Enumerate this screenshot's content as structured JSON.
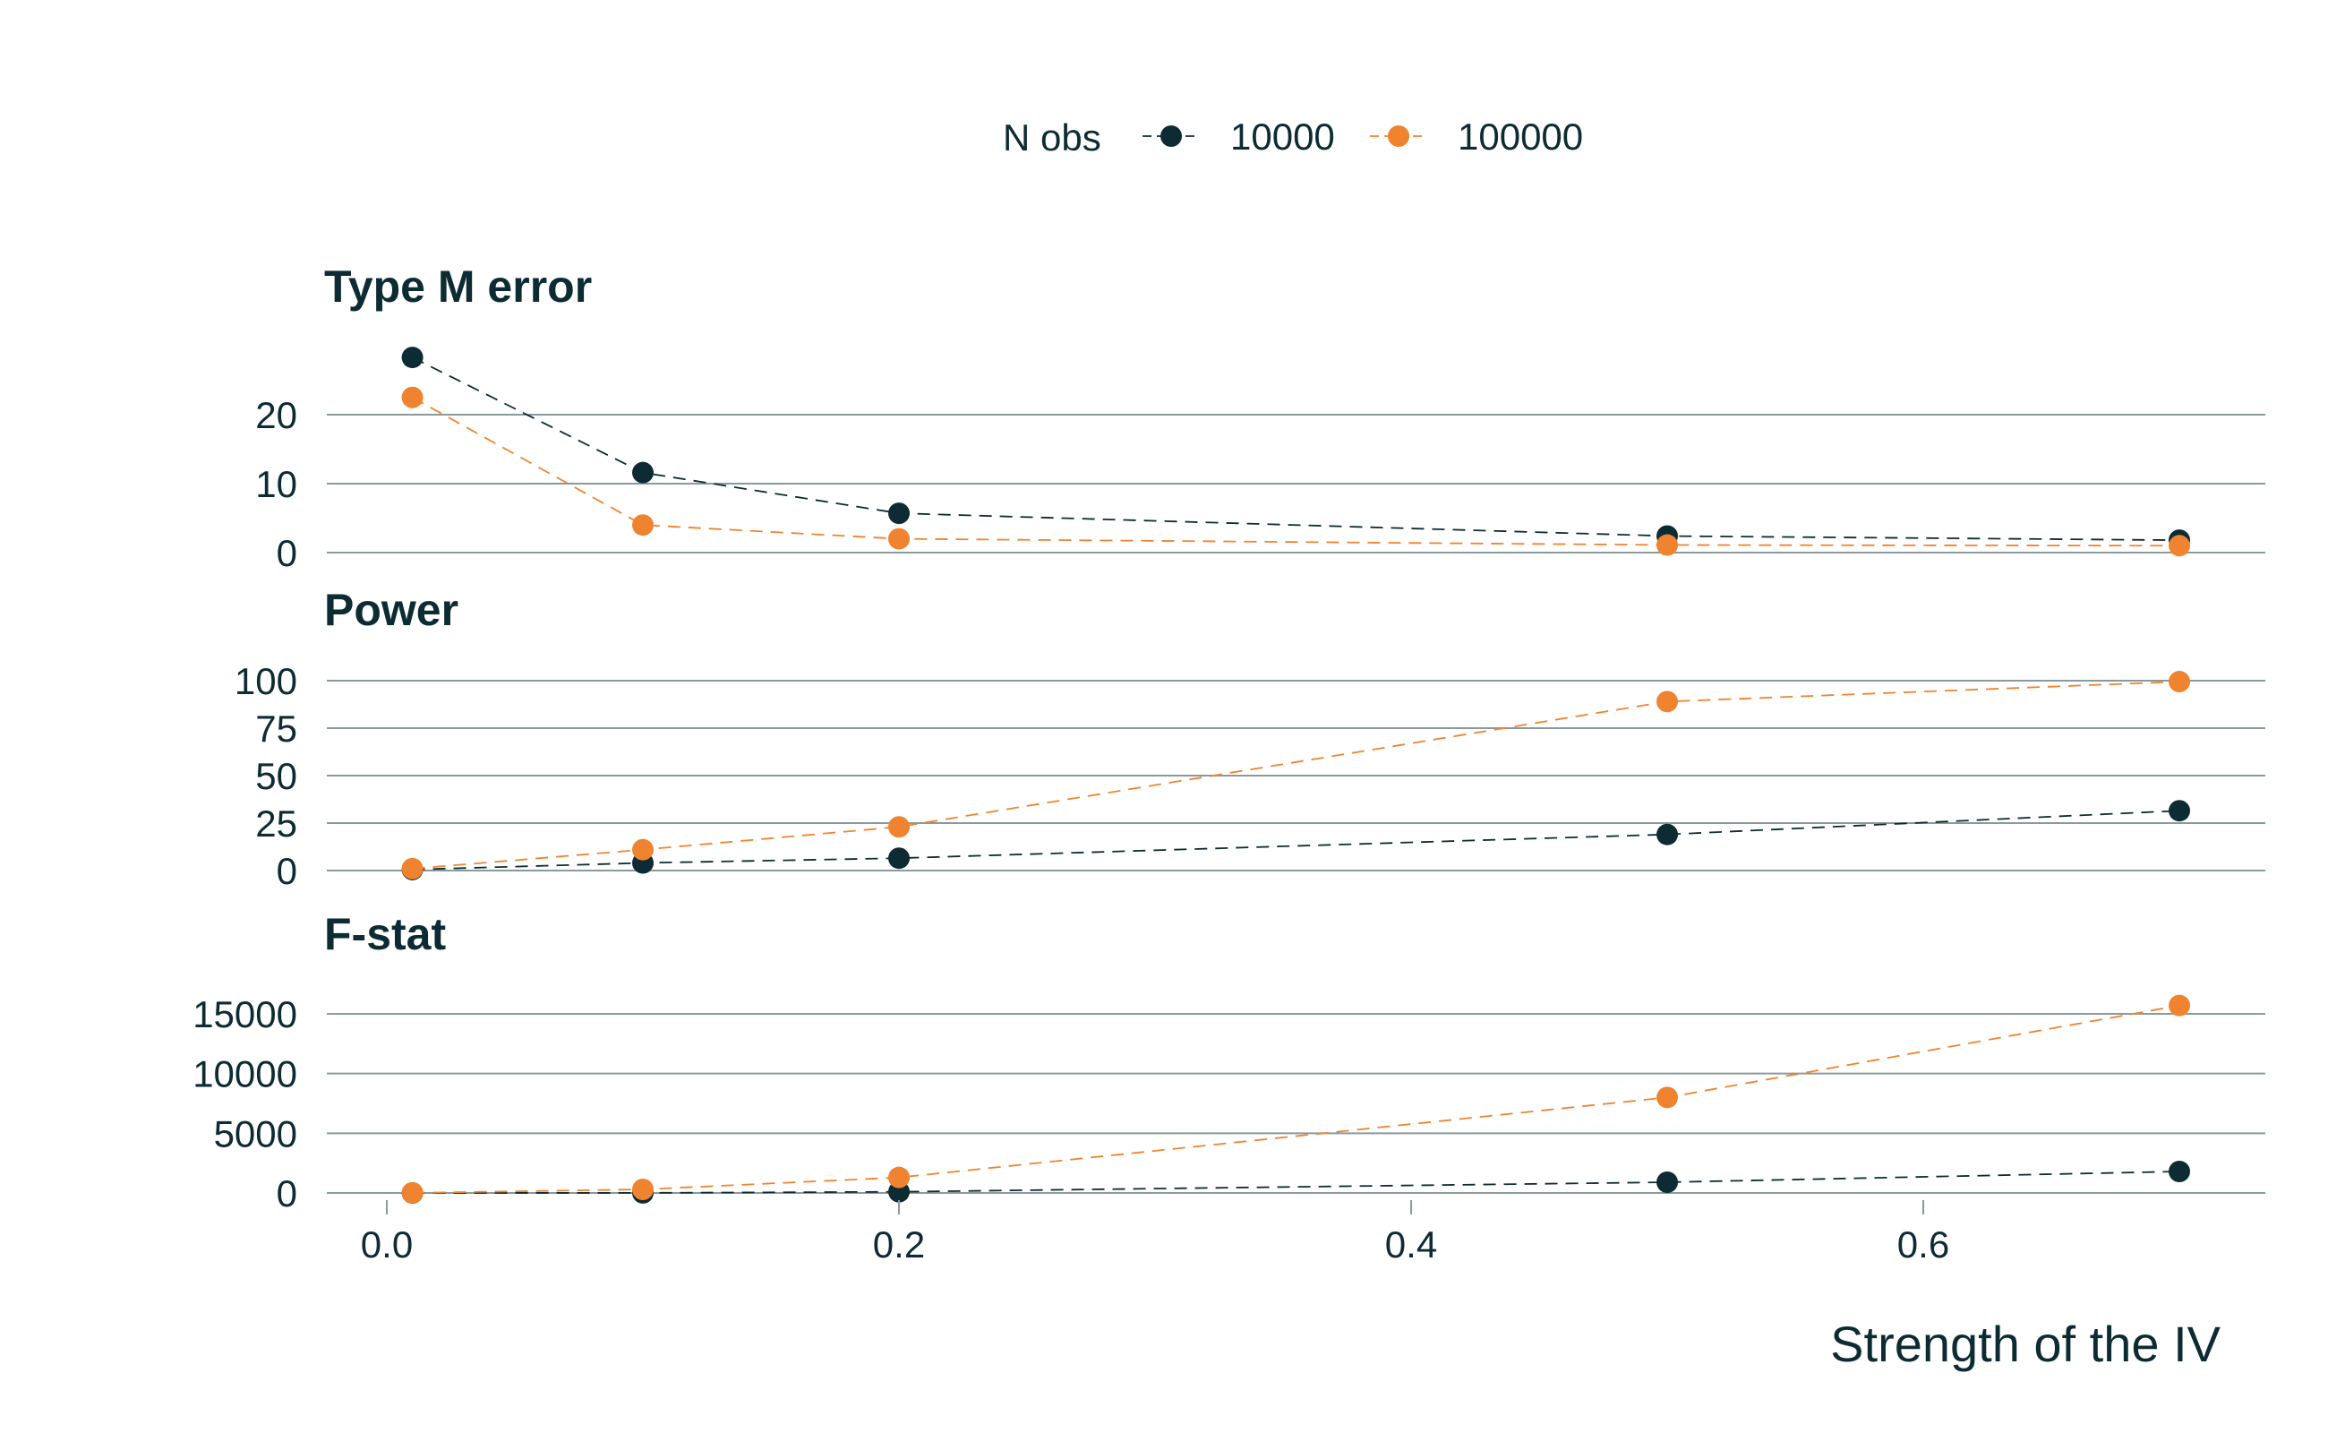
{
  "colors": {
    "text": "#0d2b33",
    "grid": "#8a9a9c",
    "series_10000": "#0d2b33",
    "series_100000": "#f0832f"
  },
  "legend": {
    "title": "N obs",
    "items": [
      "10000",
      "100000"
    ]
  },
  "chart_data": {
    "type": "line",
    "facet": "vertical",
    "x": [
      0.01,
      0.1,
      0.2,
      0.5,
      0.7
    ],
    "xlabel": "Strength of the IV",
    "xticks": [
      0.0,
      0.2,
      0.4,
      0.6
    ],
    "xtick_labels": [
      "0.0",
      "0.2",
      "0.4",
      "0.6"
    ],
    "xlim": [
      -0.01,
      0.735
    ],
    "line_style": "dashed",
    "markers": true,
    "grid": "horizontal",
    "legend_position": "top",
    "panels": [
      {
        "title": "Type M error",
        "ylim": [
          0,
          28.5
        ],
        "yticks": [
          0,
          10,
          20
        ],
        "ytick_labels": [
          "0",
          "10",
          "20"
        ],
        "series": [
          {
            "name": "10000",
            "values": [
              28.3,
              11.6,
              5.7,
              2.4,
              1.8
            ]
          },
          {
            "name": "100000",
            "values": [
              22.5,
              4.0,
              2.0,
              1.1,
              1.0
            ]
          }
        ]
      },
      {
        "title": "Power",
        "ylim": [
          0,
          100
        ],
        "yticks": [
          0,
          25,
          50,
          75,
          100
        ],
        "ytick_labels": [
          "0",
          "25",
          "50",
          "75",
          "100"
        ],
        "series": [
          {
            "name": "10000",
            "values": [
              0.5,
              4,
              6.5,
              19,
              31.5
            ]
          },
          {
            "name": "100000",
            "values": [
              1,
              11,
              23,
              89,
              99.5
            ]
          }
        ]
      },
      {
        "title": "F-stat",
        "ylim": [
          0,
          15700
        ],
        "yticks": [
          0,
          5000,
          10000,
          15000
        ],
        "ytick_labels": [
          "0",
          "5000",
          "10000",
          "15000"
        ],
        "series": [
          {
            "name": "10000",
            "values": [
              0,
              10,
              100,
              900,
              1800
            ]
          },
          {
            "name": "100000",
            "values": [
              10,
              300,
              1300,
              8000,
              15700
            ]
          }
        ]
      }
    ]
  }
}
